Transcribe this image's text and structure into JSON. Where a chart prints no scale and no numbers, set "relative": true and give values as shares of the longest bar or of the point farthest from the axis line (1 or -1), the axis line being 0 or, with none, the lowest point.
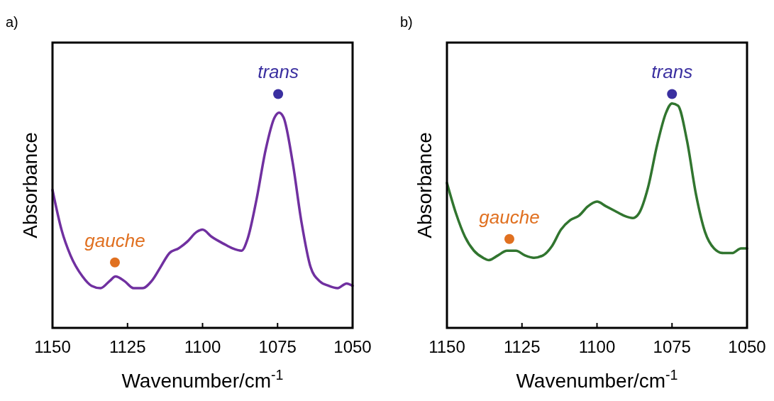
{
  "chart_data": [
    {
      "type": "line",
      "title": "a)",
      "xlabel": "Wavenumber/cm$^{-1}$",
      "ylabel": "Absorbance",
      "relative": true,
      "xlim": [
        1150,
        1050
      ],
      "xticks": [
        1150,
        1125,
        1100,
        1075,
        1050
      ],
      "tick_labels": "x",
      "series": [
        {
          "color": "#7030a0",
          "x": [
            1150,
            1147,
            1144,
            1140,
            1137,
            1134,
            1131,
            1129,
            1126,
            1123,
            1120,
            1117,
            1114,
            1111,
            1108,
            1105,
            1102,
            1100,
            1097,
            1093,
            1090,
            1087,
            1085,
            1082,
            1079,
            1076,
            1074.5,
            1073,
            1070,
            1067,
            1064,
            1061,
            1058,
            1055,
            1052,
            1050
          ],
          "values": [
            0.59,
            0.42,
            0.31,
            0.22,
            0.18,
            0.17,
            0.2,
            0.22,
            0.2,
            0.17,
            0.17,
            0.2,
            0.26,
            0.32,
            0.34,
            0.37,
            0.41,
            0.42,
            0.39,
            0.36,
            0.34,
            0.33,
            0.38,
            0.55,
            0.76,
            0.9,
            0.92,
            0.9,
            0.71,
            0.45,
            0.26,
            0.2,
            0.18,
            0.17,
            0.19,
            0.18
          ]
        },
        {
          "type": "scatter",
          "marker": "circle",
          "x": [
            1129.2,
            1074.8
          ],
          "values": [
            0.28,
            1
          ],
          "colors": [
            "#e07020",
            "#3a2fa0"
          ]
        }
      ],
      "annotations": [
        {
          "text": "gauche",
          "x": 1129.2,
          "y": 0.28
        },
        {
          "text": "trans",
          "x": 1074.8,
          "y": 1
        }
      ]
    },
    {
      "type": "line",
      "title": "b)",
      "xlabel": "Wavenumber/cm$^{-1}$",
      "ylabel": "Absorbance",
      "relative": true,
      "xlim": [
        1150,
        1050
      ],
      "xticks": [
        1150,
        1125,
        1100,
        1075,
        1050
      ],
      "tick_labels": "x",
      "series": [
        {
          "color": "#31752f",
          "x": [
            1150,
            1147,
            1144,
            1141,
            1138,
            1136,
            1133,
            1130,
            1127,
            1124,
            1121,
            1118,
            1115,
            1112,
            1109,
            1106,
            1103,
            1100,
            1097,
            1094,
            1091,
            1088,
            1086,
            1083,
            1080,
            1077,
            1075,
            1073,
            1070,
            1067,
            1064,
            1061,
            1058,
            1055,
            1052,
            1050
          ],
          "values": [
            0.62,
            0.49,
            0.39,
            0.33,
            0.3,
            0.29,
            0.31,
            0.33,
            0.33,
            0.31,
            0.3,
            0.31,
            0.35,
            0.42,
            0.46,
            0.48,
            0.52,
            0.54,
            0.52,
            0.5,
            0.48,
            0.47,
            0.49,
            0.6,
            0.78,
            0.92,
            0.96,
            0.95,
            0.8,
            0.57,
            0.41,
            0.34,
            0.32,
            0.32,
            0.34,
            0.34
          ]
        },
        {
          "type": "scatter",
          "marker": "circle",
          "x": [
            1129.2,
            1075
          ],
          "values": [
            0.38,
            1
          ],
          "colors": [
            "#e07020",
            "#3a2fa0"
          ]
        }
      ],
      "annotations": [
        {
          "text": "gauche",
          "x": 1129.2,
          "y": 0.38
        },
        {
          "text": "trans",
          "x": 1075,
          "y": 1
        }
      ]
    }
  ]
}
